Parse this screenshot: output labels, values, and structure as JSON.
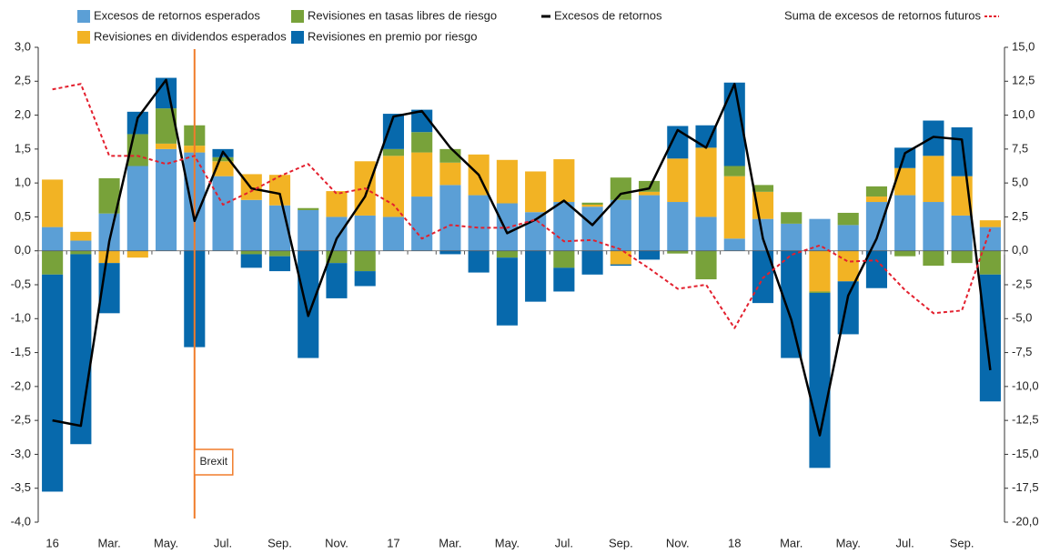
{
  "chart_data": {
    "type": "bar",
    "stacked": true,
    "categories": [
      "16",
      null,
      "Mar.",
      null,
      "May.",
      null,
      "Jul.",
      null,
      "Sep.",
      null,
      "Nov.",
      null,
      "17",
      null,
      "Mar.",
      null,
      "May.",
      null,
      "Jul.",
      null,
      "Sep.",
      null,
      "Nov.",
      null,
      "18",
      null,
      "Mar.",
      null,
      "May.",
      null,
      "Jul.",
      null,
      "Sep.",
      null
    ],
    "series": [
      {
        "name": "Excesos de retornos esperados",
        "type": "bar",
        "color": "#5b9fd6",
        "values": [
          0.35,
          0.15,
          0.55,
          1.25,
          1.5,
          1.45,
          1.1,
          0.75,
          0.67,
          0.6,
          0.5,
          0.52,
          0.5,
          0.8,
          0.97,
          0.82,
          0.7,
          0.57,
          0.72,
          0.65,
          0.75,
          0.82,
          0.72,
          0.5,
          0.18,
          0.47,
          0.4,
          0.47,
          0.38,
          0.72,
          0.82,
          0.72,
          0.52,
          0.35
        ]
      },
      {
        "name": "Revisiones en dividendos esperados",
        "type": "bar",
        "color": "#f2b324",
        "values": [
          0.7,
          0.13,
          -0.18,
          -0.1,
          0.08,
          0.1,
          0.22,
          0.38,
          0.45,
          0,
          0.38,
          0.8,
          0.9,
          0.65,
          0.33,
          0.6,
          0.64,
          0.6,
          0.63,
          0.03,
          -0.2,
          0.05,
          0.64,
          1.02,
          0.92,
          0.4,
          0,
          -0.6,
          -0.45,
          0.08,
          0.4,
          0.68,
          0.58,
          0.1
        ]
      },
      {
        "name": "Revisiones en tasas libres de riesgo",
        "type": "bar",
        "color": "#78a23a",
        "values": [
          -0.35,
          -0.05,
          0.52,
          0.47,
          0.52,
          0.3,
          0.06,
          -0.05,
          -0.08,
          0.03,
          -0.18,
          -0.3,
          0.1,
          0.3,
          0.2,
          0,
          -0.1,
          0,
          -0.25,
          0.03,
          0.33,
          0.16,
          -0.04,
          -0.42,
          0.15,
          0.1,
          0.17,
          -0.02,
          0.18,
          0.15,
          -0.08,
          -0.22,
          -0.18,
          -0.35
        ]
      },
      {
        "name": "Revisiones en premio por riesgo",
        "type": "bar",
        "color": "#0769ac",
        "values": [
          -3.2,
          -2.8,
          -0.74,
          0.33,
          0.45,
          -1.42,
          0.12,
          -0.2,
          -0.22,
          -1.58,
          -0.52,
          -0.22,
          0.52,
          0.33,
          -0.05,
          -0.32,
          -1.0,
          -0.75,
          -0.35,
          -0.35,
          -0.02,
          -0.13,
          0.48,
          0.33,
          1.23,
          -0.77,
          -1.58,
          -2.58,
          -0.78,
          -0.55,
          0.3,
          0.52,
          0.72,
          -1.87
        ]
      },
      {
        "name": "Excesos de retornos",
        "type": "line",
        "axis": "y2",
        "color": "#000000",
        "values": [
          -12.5,
          -12.9,
          0.7,
          9.8,
          12.6,
          2.2,
          7.3,
          4.6,
          4.2,
          -4.8,
          0.9,
          4.0,
          9.9,
          10.3,
          7.6,
          5.6,
          1.3,
          2.3,
          3.7,
          1.9,
          4.2,
          4.6,
          8.9,
          7.6,
          12.3,
          0.9,
          -5.1,
          -13.6,
          -3.3,
          0.9,
          7.2,
          8.4,
          8.2,
          -8.8
        ]
      },
      {
        "name": "Suma de excesos de retornos futuros",
        "type": "line",
        "axis": "y2",
        "color": "#e3202e",
        "dashed": true,
        "values": [
          11.9,
          12.3,
          7.0,
          7.0,
          6.4,
          7.0,
          3.4,
          4.4,
          5.5,
          6.4,
          4.2,
          4.6,
          3.4,
          0.9,
          1.9,
          1.7,
          1.7,
          2.3,
          0.7,
          0.8,
          0.1,
          -1.3,
          -2.8,
          -2.5,
          -5.7,
          -2.0,
          -0.3,
          0.4,
          -0.8,
          -0.7,
          -2.9,
          -4.6,
          -4.4,
          1.6
        ]
      }
    ],
    "ylim": [
      -4,
      3
    ],
    "yticks": [
      {
        "value": 3,
        "label": "3,0"
      },
      {
        "value": 2.5,
        "label": "2,5"
      },
      {
        "value": 2,
        "label": "2,0"
      },
      {
        "value": 1.5,
        "label": "1,5"
      },
      {
        "value": 1,
        "label": "1,0"
      },
      {
        "value": 0.5,
        "label": "0,5"
      },
      {
        "value": 0,
        "label": "0,0"
      },
      {
        "value": -0.5,
        "label": "-0,5"
      },
      {
        "value": -1,
        "label": "-1,0"
      },
      {
        "value": -1.5,
        "label": "-1,5"
      },
      {
        "value": -2,
        "label": "-2,0"
      },
      {
        "value": -2.5,
        "label": "-2,5"
      },
      {
        "value": -3,
        "label": "-3,0"
      },
      {
        "value": -3.5,
        "label": "-3,5"
      },
      {
        "value": -4,
        "label": "-4,0"
      }
    ],
    "y2lim": [
      -20,
      15
    ],
    "y2ticks": [
      {
        "value": 15,
        "label": "15,0"
      },
      {
        "value": 12.5,
        "label": "12,5"
      },
      {
        "value": 10,
        "label": "10,0"
      },
      {
        "value": 7.5,
        "label": "7,5"
      },
      {
        "value": 5,
        "label": "5,0"
      },
      {
        "value": 2.5,
        "label": "2,5"
      },
      {
        "value": 0,
        "label": "0,0"
      },
      {
        "value": -2.5,
        "label": "-2,5"
      },
      {
        "value": -5,
        "label": "-5,0"
      },
      {
        "value": -7.5,
        "label": "-7,5"
      },
      {
        "value": -10,
        "label": "-10,0"
      },
      {
        "value": -12.5,
        "label": "-12,5"
      },
      {
        "value": -15,
        "label": "-15,0"
      },
      {
        "value": -17.5,
        "label": "-17,5"
      },
      {
        "value": -20,
        "label": "-20,0"
      }
    ],
    "annotation": "Brexit",
    "annotation_color": "#f07c2b"
  }
}
